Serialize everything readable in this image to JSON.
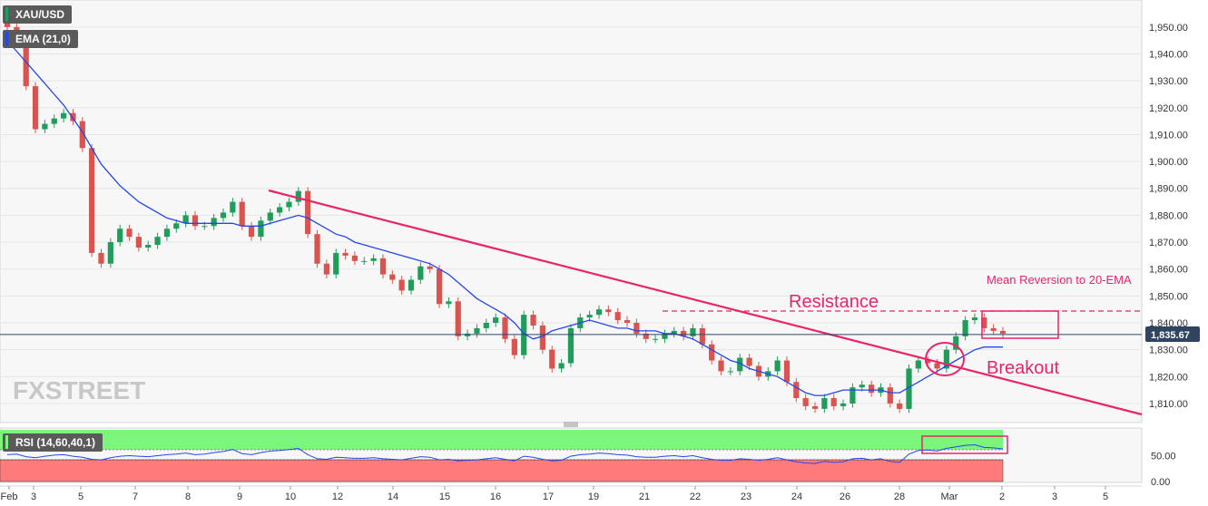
{
  "colors": {
    "bull": "#1e9e5a",
    "bear": "#d9534f",
    "ema": "#2547e8",
    "trendline": "#e8246a",
    "annotation": "#e8246a",
    "rsi_line": "#2547e8",
    "rsi_upper_zone": "#7cf57c",
    "rsi_lower_zone": "#ff7b7b",
    "price_tag_bg": "#2f4460"
  },
  "chart_data": [
    {
      "type": "candlestick",
      "title": "XAU/USD",
      "indicator_label": "EMA (21,0)",
      "x_ticks": [
        "Feb",
        "3",
        "5",
        "7",
        "8",
        "9",
        "10",
        "12",
        "14",
        "15",
        "16",
        "17",
        "19",
        "21",
        "22",
        "23",
        "24",
        "26",
        "28",
        "Mar",
        "2",
        "3",
        "5"
      ],
      "y_ticks": [
        "1,810.00",
        "1,820.00",
        "1,830.00",
        "1,840.00",
        "1,850.00",
        "1,860.00",
        "1,870.00",
        "1,880.00",
        "1,890.00",
        "1,900.00",
        "1,910.00",
        "1,920.00",
        "1,930.00",
        "1,940.00",
        "1,950.00"
      ],
      "ylim": [
        1805,
        1955
      ],
      "current_price_label": "1,835.67",
      "current_price": 1835.67,
      "series": [
        {
          "name": "XAU/USD",
          "close": [
            1950,
            1944,
            1928,
            1912,
            1914,
            1916,
            1918,
            1915,
            1905,
            1866,
            1862,
            1870,
            1875,
            1872,
            1868,
            1869,
            1872,
            1875,
            1877,
            1880,
            1876,
            1876,
            1879,
            1881,
            1885,
            1876,
            1872,
            1878,
            1881,
            1883,
            1885,
            1889,
            1873,
            1862,
            1858,
            1866,
            1865,
            1863,
            1863,
            1864,
            1858,
            1856,
            1852,
            1856,
            1861,
            1860,
            1847,
            1848,
            1835,
            1836,
            1838,
            1840,
            1842,
            1834,
            1828,
            1843,
            1839,
            1830,
            1823,
            1825,
            1838,
            1842,
            1843,
            1845,
            1844,
            1841,
            1840,
            1836,
            1834,
            1834,
            1836,
            1837,
            1835,
            1838,
            1832,
            1826,
            1822,
            1822,
            1827,
            1824,
            1820,
            1822,
            1826,
            1818,
            1812,
            1809,
            1808,
            1812,
            1809,
            1810,
            1816,
            1817,
            1814,
            1816,
            1810,
            1808,
            1823,
            1826,
            1825,
            1823,
            1830,
            1835,
            1841,
            1842,
            1838,
            1837,
            1836
          ]
        },
        {
          "name": "EMA (21,0)",
          "values": [
            1945,
            1941,
            1937,
            1933,
            1929,
            1925,
            1921,
            1916,
            1911,
            1905,
            1899,
            1895,
            1891,
            1888,
            1885,
            1883,
            1881,
            1879,
            1878,
            1877,
            1877,
            1877,
            1877,
            1877,
            1877,
            1876,
            1876,
            1876,
            1877,
            1878,
            1879,
            1880,
            1879,
            1877,
            1875,
            1873,
            1872,
            1870,
            1869,
            1868,
            1867,
            1866,
            1865,
            1864,
            1863,
            1862,
            1860,
            1858,
            1855,
            1852,
            1849,
            1847,
            1845,
            1843,
            1840,
            1836,
            1834,
            1835,
            1837,
            1838,
            1839,
            1840,
            1841,
            1840,
            1839,
            1838,
            1838,
            1837,
            1837,
            1837,
            1836,
            1836,
            1835,
            1834,
            1832,
            1830,
            1828,
            1826,
            1825,
            1823,
            1822,
            1821,
            1820,
            1818,
            1816,
            1814,
            1813,
            1813,
            1814,
            1815,
            1815,
            1815,
            1815,
            1815,
            1814,
            1814,
            1816,
            1818,
            1820,
            1822,
            1824,
            1826,
            1828,
            1830,
            1831,
            1831,
            1831
          ]
        }
      ],
      "annotations": {
        "resistance": "Resistance",
        "breakout": "Breakout",
        "mean_reversion": "Mean Reversion to 20-EMA"
      },
      "watermark": "FXSTREET"
    },
    {
      "type": "line",
      "title": "RSI (14,60,40,1)",
      "y_ticks": [
        "0.00",
        "50.00"
      ],
      "ylim": [
        0,
        100
      ],
      "levels": [
        40,
        60
      ],
      "series": [
        {
          "name": "RSI (14,60,40,1)",
          "values": [
            52,
            53,
            48,
            46,
            49,
            51,
            52,
            49,
            47,
            43,
            42,
            46,
            49,
            50,
            49,
            48,
            50,
            52,
            53,
            55,
            52,
            53,
            56,
            58,
            62,
            54,
            52,
            56,
            59,
            60,
            62,
            64,
            52,
            44,
            43,
            47,
            46,
            45,
            45,
            46,
            44,
            43,
            42,
            45,
            48,
            47,
            42,
            43,
            40,
            41,
            42,
            44,
            46,
            43,
            40,
            49,
            47,
            43,
            40,
            41,
            49,
            52,
            53,
            55,
            54,
            52,
            51,
            48,
            47,
            47,
            49,
            50,
            48,
            50,
            46,
            43,
            41,
            41,
            44,
            43,
            41,
            43,
            46,
            42,
            38,
            36,
            35,
            39,
            37,
            38,
            44,
            45,
            42,
            44,
            39,
            37,
            53,
            60,
            61,
            59,
            64,
            67,
            70,
            71,
            66,
            65,
            63
          ]
        }
      ]
    }
  ]
}
